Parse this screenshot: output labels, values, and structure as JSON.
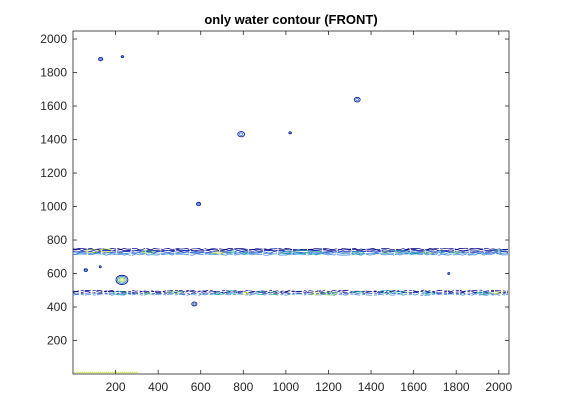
{
  "chart_data": {
    "type": "contour",
    "title": "only water contour (FRONT)",
    "xlabel": "",
    "ylabel": "",
    "xlim": [
      0,
      2048
    ],
    "ylim": [
      0,
      2048
    ],
    "xticks": [
      200,
      400,
      600,
      800,
      1000,
      1200,
      1400,
      1600,
      1800,
      2000
    ],
    "yticks": [
      200,
      400,
      600,
      800,
      1000,
      1200,
      1400,
      1600,
      1800,
      2000
    ],
    "grid": false,
    "colormap": [
      "#000080",
      "#1f3fbf",
      "#2a7fd4",
      "#20b2aa",
      "#66cc66",
      "#c8e23c"
    ],
    "bands": [
      {
        "name": "upper band",
        "y_center": 730,
        "half_width": 18,
        "x_start": 0,
        "x_end": 2048
      },
      {
        "name": "lower band",
        "y_center": 485,
        "half_width": 9,
        "x_start": 0,
        "x_end": 2048
      }
    ],
    "blobs": [
      {
        "x": 130,
        "y": 1880,
        "r": 10
      },
      {
        "x": 232,
        "y": 1895,
        "r": 6
      },
      {
        "x": 1335,
        "y": 1638,
        "r": 14
      },
      {
        "x": 790,
        "y": 1432,
        "r": 16
      },
      {
        "x": 1020,
        "y": 1440,
        "r": 6
      },
      {
        "x": 590,
        "y": 1015,
        "r": 10
      },
      {
        "x": 230,
        "y": 562,
        "r": 28
      },
      {
        "x": 60,
        "y": 620,
        "r": 8
      },
      {
        "x": 570,
        "y": 418,
        "r": 12
      },
      {
        "x": 128,
        "y": 640,
        "r": 4
      },
      {
        "x": 1765,
        "y": 600,
        "r": 3
      }
    ],
    "bottom_strip": {
      "x_start": 0,
      "x_end": 300,
      "y": 8
    }
  },
  "colors": {
    "axis": "#262626",
    "background": "#ffffff"
  }
}
